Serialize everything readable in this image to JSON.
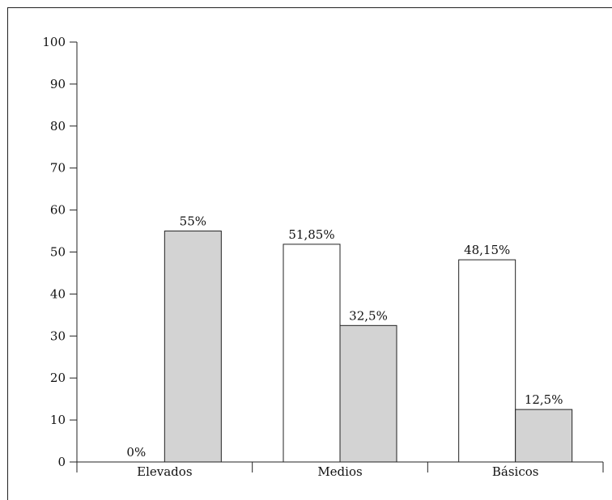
{
  "chart_data": {
    "type": "bar",
    "categories": [
      "Elevados",
      "Medios",
      "Básicos"
    ],
    "series": [
      {
        "values": [
          0,
          51.85,
          48.15
        ],
        "labels": [
          "0%",
          "51,85%",
          "48,15%"
        ],
        "color": "#ffffff"
      },
      {
        "values": [
          55,
          32.5,
          12.5
        ],
        "labels": [
          "55%",
          "32,5%",
          "12,5%"
        ],
        "color": "#d3d3d3"
      }
    ],
    "ylim": [
      0,
      100
    ],
    "yticks": [
      "0",
      "10",
      "20",
      "30",
      "40",
      "50",
      "60",
      "70",
      "80",
      "90",
      "100"
    ],
    "grid": false,
    "title": "",
    "xlabel": "",
    "ylabel": ""
  }
}
